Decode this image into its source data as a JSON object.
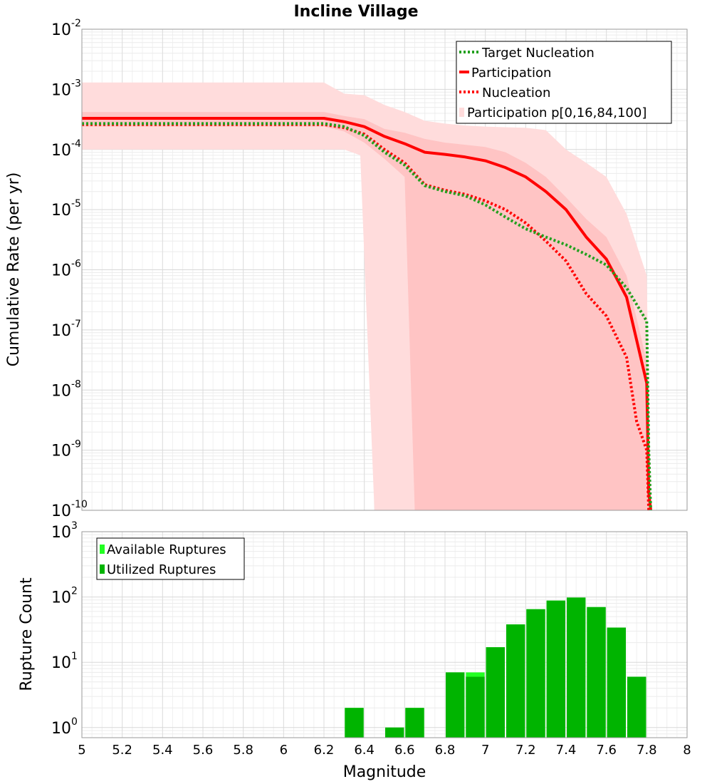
{
  "chart_data": [
    {
      "type": "line",
      "title": "Incline Village",
      "xlabel": "",
      "ylabel": "Cumulative Rate (per yr)",
      "xlim": [
        5,
        8
      ],
      "ylim": [
        1e-10,
        0.01
      ],
      "yscale": "log",
      "grid": true,
      "legend_position": "top-right",
      "x_ticks": [
        "5",
        "5.2",
        "5.4",
        "5.6",
        "5.8",
        "6",
        "6.2",
        "6.4",
        "6.6",
        "6.8",
        "7",
        "7.2",
        "7.4",
        "7.6",
        "7.8",
        "8"
      ],
      "y_ticks": [
        {
          "base": "10",
          "exp": "-2"
        },
        {
          "base": "10",
          "exp": "-3"
        },
        {
          "base": "10",
          "exp": "-4"
        },
        {
          "base": "10",
          "exp": "-5"
        },
        {
          "base": "10",
          "exp": "-6"
        },
        {
          "base": "10",
          "exp": "-7"
        },
        {
          "base": "10",
          "exp": "-8"
        },
        {
          "base": "10",
          "exp": "-9"
        },
        {
          "base": "10",
          "exp": "-10"
        }
      ],
      "bands": [
        {
          "name": "Participation p[0,16,84,100]",
          "color": "#ffdcdc",
          "x": [
            5.0,
            6.2,
            6.3,
            6.4,
            6.5,
            6.6,
            6.7,
            6.8,
            6.9,
            7.0,
            7.1,
            7.2,
            7.3,
            7.4,
            7.5,
            7.6,
            7.7,
            7.8,
            7.82
          ],
          "upper": [
            0.0013,
            0.0013,
            0.00085,
            0.0008,
            0.00055,
            0.00042,
            0.0003,
            0.00027,
            0.00025,
            0.00024,
            0.000235,
            0.00023,
            0.00021,
            0.0001,
            6e-05,
            3.5e-05,
            8.5e-06,
            8e-07,
            1e-10
          ],
          "lower": [
            0.0001,
            0.0001,
            0.0001,
            1e-10,
            1e-10,
            1e-10,
            1e-10,
            1e-10,
            1e-10,
            1e-10,
            1e-10,
            1e-10,
            1e-10,
            1e-10,
            1e-10,
            1e-10,
            1e-10,
            1e-10,
            1e-10
          ],
          "lower_edges": [
            [
              6.38,
              8e-05
            ],
            [
              6.45,
              1e-10
            ]
          ]
        },
        {
          "name": "Participation 16-84",
          "color": "#ffc4c4",
          "x": [
            5.0,
            6.2,
            6.3,
            6.4,
            6.5,
            6.6,
            6.7,
            6.8,
            6.9,
            7.0,
            7.1,
            7.2,
            7.3,
            7.4,
            7.5,
            7.6,
            7.7,
            7.8,
            7.82
          ],
          "upper": [
            0.00042,
            0.00042,
            0.00036,
            0.00032,
            0.00022,
            0.00019,
            0.00015,
            0.00013,
            0.00012,
            0.00011,
            9e-05,
            6e-05,
            3.5e-05,
            1.6e-05,
            7e-06,
            3.5e-06,
            8e-07,
            3e-08,
            1e-10
          ],
          "lower": [
            0.00024,
            0.00024,
            0.0002,
            0.00013,
            7e-05,
            3.5e-05,
            1e-10,
            1e-10,
            1e-10,
            1e-10,
            1e-10,
            1e-10,
            1e-10,
            1e-10,
            1e-10,
            1e-10,
            1e-10,
            1e-10,
            1e-10
          ],
          "lower_edges": [
            [
              6.6,
              3.5e-05
            ],
            [
              6.65,
              1e-10
            ]
          ]
        }
      ],
      "series": [
        {
          "name": "Participation",
          "style": "solid",
          "color": "#ff0000",
          "x": [
            5.0,
            6.2,
            6.3,
            6.4,
            6.5,
            6.6,
            6.7,
            6.8,
            6.9,
            7.0,
            7.1,
            7.2,
            7.3,
            7.4,
            7.5,
            7.6,
            7.7,
            7.8,
            7.81,
            7.82
          ],
          "y": [
            0.00033,
            0.00033,
            0.00029,
            0.00024,
            0.000165,
            0.000125,
            9e-05,
            8.3e-05,
            7.5e-05,
            6.5e-05,
            5e-05,
            3.5e-05,
            2e-05,
            1e-05,
            3.5e-06,
            1.5e-06,
            3.5e-07,
            1.3e-08,
            2e-10,
            1e-10
          ]
        },
        {
          "name": "Nucleation",
          "style": "dotted",
          "color": "#ff0000",
          "x": [
            5.0,
            6.2,
            6.3,
            6.4,
            6.5,
            6.6,
            6.7,
            6.8,
            6.9,
            7.0,
            7.1,
            7.2,
            7.3,
            7.4,
            7.5,
            7.6,
            7.7,
            7.75,
            7.8,
            7.81
          ],
          "y": [
            0.00026,
            0.00026,
            0.00023,
            0.00018,
            0.0001,
            6e-05,
            2.6e-05,
            2.1e-05,
            1.8e-05,
            1.4e-05,
            1e-05,
            6e-06,
            3e-06,
            1.4e-06,
            4e-07,
            1.7e-07,
            3.5e-08,
            3e-09,
            1e-09,
            1e-10
          ]
        },
        {
          "name": "Target Nucleation",
          "style": "dotted",
          "color": "#22a01e",
          "x": [
            5.0,
            6.2,
            6.3,
            6.4,
            6.5,
            6.6,
            6.7,
            6.8,
            6.9,
            7.0,
            7.1,
            7.2,
            7.3,
            7.4,
            7.5,
            7.6,
            7.7,
            7.8,
            7.81,
            7.82
          ],
          "y": [
            0.00027,
            0.00027,
            0.00024,
            0.00017,
            9e-05,
            5.5e-05,
            2.5e-05,
            2e-05,
            1.7e-05,
            1.2e-05,
            7.5e-06,
            4.8e-06,
            3.5e-06,
            2.6e-06,
            1.8e-06,
            1.2e-06,
            5e-07,
            1.4e-07,
            1e-09,
            1e-10
          ]
        }
      ]
    },
    {
      "type": "bar",
      "xlabel": "Magnitude",
      "ylabel": "Rupture Count",
      "xlim": [
        5,
        8
      ],
      "ylim": [
        0.7,
        1000
      ],
      "yscale": "log",
      "grid": true,
      "legend_position": "top-left",
      "bar_width": 0.1,
      "y_ticks": [
        {
          "base": "10",
          "exp": "3"
        },
        {
          "base": "10",
          "exp": "2"
        },
        {
          "base": "10",
          "exp": "1"
        },
        {
          "base": "10",
          "exp": "0"
        }
      ],
      "x": [
        6.35,
        6.55,
        6.65,
        6.85,
        6.95,
        7.05,
        7.15,
        7.25,
        7.35,
        7.45,
        7.55,
        7.65,
        7.75
      ],
      "series": [
        {
          "name": "Available Ruptures",
          "color": "#22ff22",
          "values": [
            2,
            1,
            2,
            7,
            7,
            17,
            38,
            65,
            88,
            98,
            70,
            34,
            6
          ]
        },
        {
          "name": "Utilized Ruptures",
          "color": "#00b400",
          "values": [
            2,
            1,
            2,
            7,
            6,
            17,
            38,
            65,
            88,
            98,
            70,
            34,
            6
          ]
        }
      ]
    }
  ]
}
